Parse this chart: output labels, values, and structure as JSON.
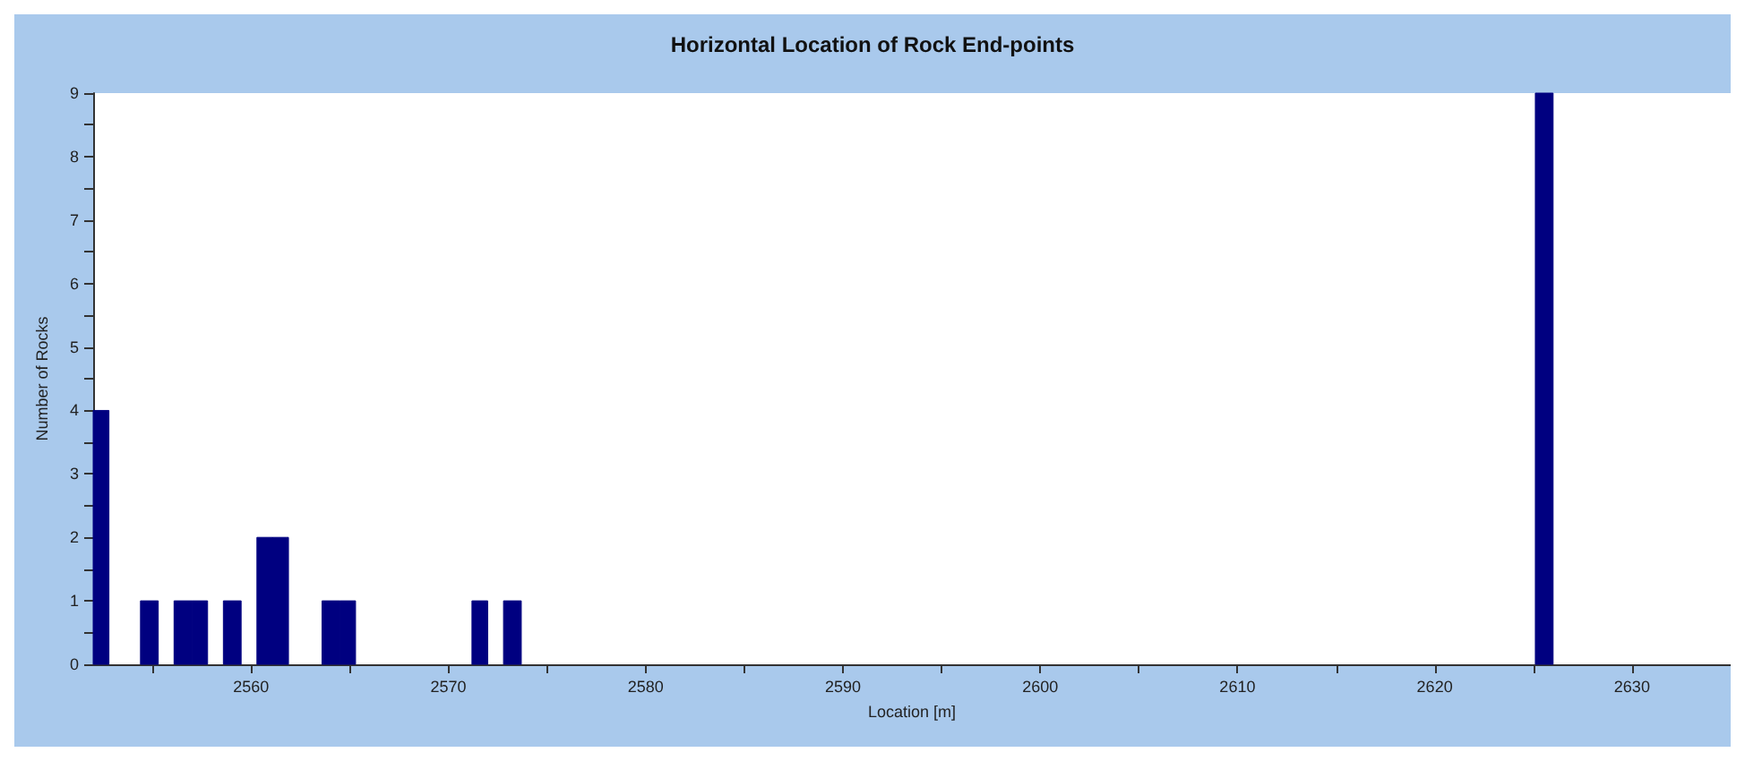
{
  "chart_data": {
    "type": "histogram",
    "title": "Horizontal Location of Rock End-points",
    "xlabel": "Location [m]",
    "ylabel": "Number of Rocks",
    "bins": [
      2552,
      2552.8,
      2554.4,
      2555.3,
      2556.1,
      2557.0,
      2557.8,
      2558.6,
      2559.5,
      2560.3,
      2561.1,
      2561.9,
      2563.6,
      2564.5,
      2565.3,
      2571.2,
      2572.0,
      2572.8,
      2573.7,
      2625.1,
      2626.0
    ],
    "values": [
      4,
      0,
      1,
      0,
      1,
      1,
      0,
      1,
      0,
      2,
      2,
      0,
      1,
      1,
      0,
      1,
      0,
      1,
      0,
      9
    ],
    "color": "#000080",
    "xlim": [
      2552,
      2635
    ],
    "xticks": [
      {
        "value": 2555,
        "label": null
      },
      2560,
      {
        "value": 2565,
        "label": null
      },
      2570,
      {
        "value": 2575,
        "label": null
      },
      2580,
      {
        "value": 2585,
        "label": null
      },
      2590,
      {
        "value": 2595,
        "label": null
      },
      2600,
      {
        "value": 2605,
        "label": null
      },
      2610,
      {
        "value": 2615,
        "label": null
      },
      2620,
      {
        "value": 2625,
        "label": null
      },
      2630
    ],
    "ylim": [
      0,
      9
    ],
    "yticks": [
      0,
      {
        "value": 0.5,
        "label": null
      },
      1,
      {
        "value": 1.5,
        "label": null
      },
      2,
      {
        "value": 2.5,
        "label": null
      },
      3,
      {
        "value": 3.5,
        "label": null
      },
      4,
      {
        "value": 4.5,
        "label": null
      },
      5,
      {
        "value": 5.5,
        "label": null
      },
      6,
      {
        "value": 6.5,
        "label": null
      },
      7,
      {
        "value": 7.5,
        "label": null
      },
      8,
      {
        "value": 8.5,
        "label": null
      },
      9
    ],
    "grid": false
  }
}
